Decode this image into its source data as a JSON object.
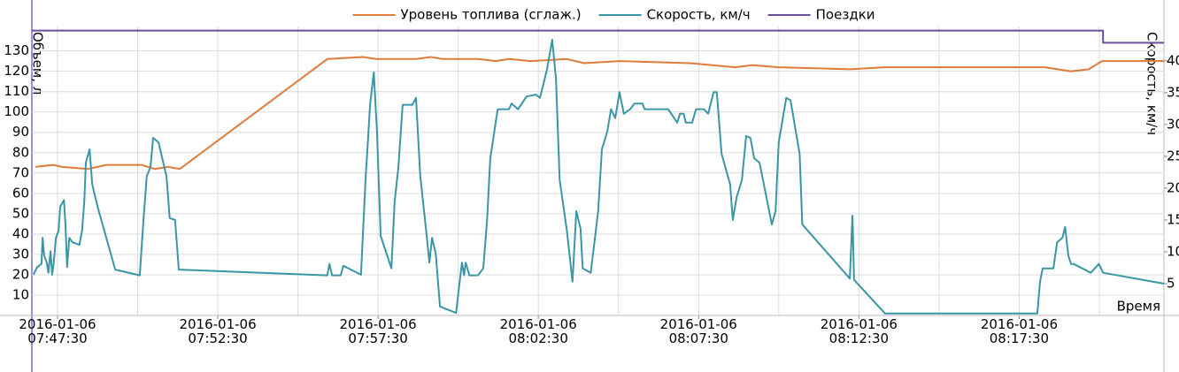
{
  "chart_data": {
    "type": "line",
    "y_label": "Объем, л",
    "y2_label": "Скорость, км/ч",
    "x_label": "Время",
    "xlim": [
      "2016-01-06T07:46:42",
      "2016-01-06T08:22:01"
    ],
    "xticks": [
      {
        "value": "2016-01-06T07:47:30",
        "label": "2016-01-06\n07:47:30"
      },
      {
        "value": "2016-01-06T07:52:30",
        "label": "2016-01-06\n07:52:30"
      },
      {
        "value": "2016-01-06T07:57:30",
        "label": "2016-01-06\n07:57:30"
      },
      {
        "value": "2016-01-06T08:02:30",
        "label": "2016-01-06\n08:02:30"
      },
      {
        "value": "2016-01-06T08:07:30",
        "label": "2016-01-06\n08:07:30"
      },
      {
        "value": "2016-01-06T08:12:30",
        "label": "2016-01-06\n08:12:30"
      },
      {
        "value": "2016-01-06T08:17:30",
        "label": "2016-01-06\n08:17:30"
      }
    ],
    "ylim": [
      0,
      142
    ],
    "yticks": [
      10,
      20,
      30,
      40,
      50,
      60,
      70,
      80,
      90,
      100,
      110,
      120,
      130
    ],
    "y2lim": [
      0,
      45.4
    ],
    "y2ticks": [
      5,
      10,
      15,
      20,
      25,
      30,
      35,
      40
    ],
    "grid": true,
    "series": [
      {
        "name": "Уровень топлива (сглаж.)",
        "color": "#e07b39",
        "axis": "y",
        "x": [
          "2016-01-06T07:46:49",
          "2016-01-06T07:47:22",
          "2016-01-06T07:47:38",
          "2016-01-06T07:48:28",
          "2016-01-06T07:49:01",
          "2016-01-06T07:50:07",
          "2016-01-06T07:50:32",
          "2016-01-06T07:50:57",
          "2016-01-06T07:51:19",
          "2016-01-06T07:55:55",
          "2016-01-06T07:57:02",
          "2016-01-06T07:57:27",
          "2016-01-06T07:58:41",
          "2016-01-06T07:59:09",
          "2016-01-06T07:59:31",
          "2016-01-06T08:00:37",
          "2016-01-06T08:01:10",
          "2016-01-06T08:01:35",
          "2016-01-06T08:02:16",
          "2016-01-06T08:03:23",
          "2016-01-06T08:03:56",
          "2016-01-06T08:05:02",
          "2016-01-06T08:07:15",
          "2016-01-06T08:08:38",
          "2016-01-06T08:09:11",
          "2016-01-06T08:10:00",
          "2016-01-06T08:12:13",
          "2016-01-06T08:13:19",
          "2016-01-06T08:18:18",
          "2016-01-06T08:19:07",
          "2016-01-06T08:19:40",
          "2016-01-06T08:20:05",
          "2016-01-06T08:22:01"
        ],
        "values": [
          73,
          74,
          73,
          72,
          74,
          74,
          72,
          73,
          72,
          126,
          127,
          126,
          126,
          127,
          126,
          126,
          125,
          126,
          125,
          126,
          124,
          125,
          124,
          122,
          123,
          122,
          121,
          122,
          122,
          120,
          121,
          125,
          125
        ]
      },
      {
        "name": "Скорость, км/ч",
        "color": "#3a96a6",
        "axis": "y2",
        "x": [
          "2016-01-06T07:46:45",
          "2016-01-06T07:46:52",
          "2016-01-06T07:47:00",
          "2016-01-06T07:47:02",
          "2016-01-06T07:47:05",
          "2016-01-06T07:47:10",
          "2016-01-06T07:47:13",
          "2016-01-06T07:47:17",
          "2016-01-06T07:47:20",
          "2016-01-06T07:47:23",
          "2016-01-06T07:47:27",
          "2016-01-06T07:47:32",
          "2016-01-06T07:47:35",
          "2016-01-06T07:47:42",
          "2016-01-06T07:47:45",
          "2016-01-06T07:47:48",
          "2016-01-06T07:47:52",
          "2016-01-06T07:47:58",
          "2016-01-06T07:48:11",
          "2016-01-06T07:48:16",
          "2016-01-06T07:48:20",
          "2016-01-06T07:48:23",
          "2016-01-06T07:48:30",
          "2016-01-06T07:48:35",
          "2016-01-06T07:48:45",
          "2016-01-06T07:49:18",
          "2016-01-06T07:50:04",
          "2016-01-06T07:50:11",
          "2016-01-06T07:50:17",
          "2016-01-06T07:50:24",
          "2016-01-06T07:50:29",
          "2016-01-06T07:50:39",
          "2016-01-06T07:50:46",
          "2016-01-06T07:50:54",
          "2016-01-06T07:51:00",
          "2016-01-06T07:51:10",
          "2016-01-06T07:51:17",
          "2016-01-06T07:55:55",
          "2016-01-06T07:55:59",
          "2016-01-06T07:56:04",
          "2016-01-06T07:56:20",
          "2016-01-06T07:56:25",
          "2016-01-06T07:56:58",
          "2016-01-06T07:57:03",
          "2016-01-06T07:57:07",
          "2016-01-06T07:57:10",
          "2016-01-06T07:57:15",
          "2016-01-06T07:57:22",
          "2016-01-06T07:57:28",
          "2016-01-06T07:57:35",
          "2016-01-06T07:57:55",
          "2016-01-06T07:58:01",
          "2016-01-06T07:58:08",
          "2016-01-06T07:58:16",
          "2016-01-06T07:58:34",
          "2016-01-06T07:58:41",
          "2016-01-06T07:58:49",
          "2016-01-06T07:59:01",
          "2016-01-06T07:59:06",
          "2016-01-06T07:59:11",
          "2016-01-06T07:59:18",
          "2016-01-06T07:59:26",
          "2016-01-06T07:59:56",
          "2016-01-06T08:00:07",
          "2016-01-06T08:00:11",
          "2016-01-06T08:00:14",
          "2016-01-06T08:00:21",
          "2016-01-06T08:00:37",
          "2016-01-06T08:00:47",
          "2016-01-06T08:00:54",
          "2016-01-06T08:01:00",
          "2016-01-06T08:01:14",
          "2016-01-06T08:01:35",
          "2016-01-06T08:01:40",
          "2016-01-06T08:01:52",
          "2016-01-06T08:02:08",
          "2016-01-06T08:02:25",
          "2016-01-06T08:02:33",
          "2016-01-06T08:02:46",
          "2016-01-06T08:02:56",
          "2016-01-06T08:03:03",
          "2016-01-06T08:03:10",
          "2016-01-06T08:03:23",
          "2016-01-06T08:03:34",
          "2016-01-06T08:03:41",
          "2016-01-06T08:03:49",
          "2016-01-06T08:03:53",
          "2016-01-06T08:04:08",
          "2016-01-06T08:04:22",
          "2016-01-06T08:04:29",
          "2016-01-06T08:04:39",
          "2016-01-06T08:04:46",
          "2016-01-06T08:04:54",
          "2016-01-06T08:05:02",
          "2016-01-06T08:05:10",
          "2016-01-06T08:05:22",
          "2016-01-06T08:05:30",
          "2016-01-06T08:05:45",
          "2016-01-06T08:05:49",
          "2016-01-06T08:06:33",
          "2016-01-06T08:06:50",
          "2016-01-06T08:06:55",
          "2016-01-06T08:07:02",
          "2016-01-06T08:07:06",
          "2016-01-06T08:07:18",
          "2016-01-06T08:07:25",
          "2016-01-06T08:07:40",
          "2016-01-06T08:07:48",
          "2016-01-06T08:07:58",
          "2016-01-06T08:08:04",
          "2016-01-06T08:08:13",
          "2016-01-06T08:08:29",
          "2016-01-06T08:08:34",
          "2016-01-06T08:08:41",
          "2016-01-06T08:08:51",
          "2016-01-06T08:08:59",
          "2016-01-06T08:09:07",
          "2016-01-06T08:09:14",
          "2016-01-06T08:09:24",
          "2016-01-06T08:09:47",
          "2016-01-06T08:09:54",
          "2016-01-06T08:10:00",
          "2016-01-06T08:10:14",
          "2016-01-06T08:10:22",
          "2016-01-06T08:10:39",
          "2016-01-06T08:10:44",
          "2016-01-06T08:12:13",
          "2016-01-06T08:12:18",
          "2016-01-06T08:12:21",
          "2016-01-06T08:13:19",
          "2016-01-06T08:18:04",
          "2016-01-06T08:18:09",
          "2016-01-06T08:18:14",
          "2016-01-06T08:18:34",
          "2016-01-06T08:18:41",
          "2016-01-06T08:18:51",
          "2016-01-06T08:18:56",
          "2016-01-06T08:19:02",
          "2016-01-06T08:19:07",
          "2016-01-06T08:19:12",
          "2016-01-06T08:19:44",
          "2016-01-06T08:19:59",
          "2016-01-06T08:20:07",
          "2016-01-06T08:22:01"
        ],
        "values": [
          6.4,
          7.6,
          8.1,
          12.2,
          9.4,
          8.3,
          6.7,
          10.1,
          6.4,
          8.3,
          12.2,
          13.3,
          17.1,
          18.1,
          14.2,
          7.6,
          12.2,
          11.5,
          11.1,
          13.3,
          17.8,
          24,
          26.1,
          20.6,
          17.1,
          7.2,
          6.3,
          15,
          21.9,
          23.3,
          27.9,
          27.2,
          24.7,
          21.9,
          15.3,
          15,
          7.2,
          6.3,
          8.1,
          6.3,
          6.3,
          7.8,
          6.4,
          15,
          21.9,
          26.1,
          33.1,
          38.2,
          28.9,
          12.5,
          7.4,
          17.8,
          23.3,
          33.1,
          33.1,
          34.2,
          21.9,
          12.5,
          8.3,
          12.2,
          9.7,
          1.4,
          0.4,
          8.3,
          6.3,
          8.3,
          6.3,
          6.3,
          7.4,
          15,
          24.7,
          32.4,
          32.4,
          33.3,
          32.4,
          34.4,
          34.7,
          34.2,
          38.6,
          43.3,
          37.2,
          21.3,
          13.6,
          5.3,
          16.4,
          13.6,
          7.4,
          6.7,
          16.4,
          26.1,
          28.9,
          32.4,
          31,
          35.1,
          31.7,
          32.4,
          33.3,
          33.3,
          32.4,
          32.4,
          30.3,
          31.7,
          31.7,
          30.3,
          30.3,
          32.4,
          32.4,
          31.7,
          35.1,
          35.1,
          25.4,
          20.6,
          15,
          18.5,
          21.3,
          28.2,
          27.9,
          24.7,
          24,
          14.3,
          16.4,
          27.2,
          34.2,
          33.8,
          25.4,
          14.3,
          5.8,
          15.7,
          5.6,
          0.3,
          0.3,
          5.3,
          7.4,
          7.4,
          11.5,
          12.2,
          13.9,
          9.4,
          8.1,
          8.1,
          6.7,
          8.1,
          6.7,
          5
        ]
      },
      {
        "name": "Поездки",
        "color": "#6b4f96",
        "axis": "y",
        "x": [
          "2016-01-06T07:46:42",
          "2016-01-06T08:20:07",
          "2016-01-06T08:20:07",
          "2016-01-06T08:22:01"
        ],
        "values": [
          140,
          140,
          134,
          134
        ]
      }
    ]
  }
}
